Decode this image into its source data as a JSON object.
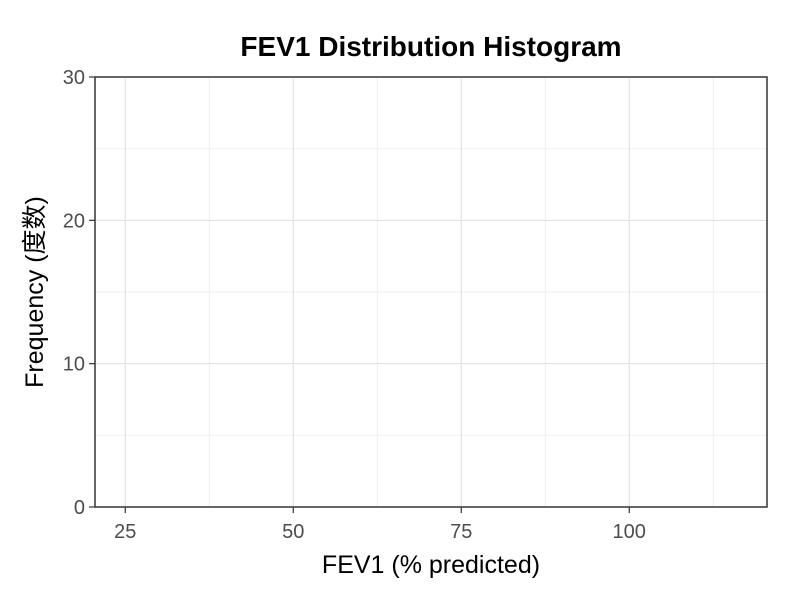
{
  "chart_data": {
    "type": "bar",
    "title": "FEV1 Distribution Histogram",
    "xlabel": "FEV1 (% predicted)",
    "ylabel": "Frequency (度数)",
    "xlim": [
      20.5,
      120.5
    ],
    "ylim": [
      0,
      30
    ],
    "x_ticks": [
      25,
      50,
      75,
      100
    ],
    "x_minor_ticks": [
      37.5,
      62.5,
      87.5,
      112.5
    ],
    "y_ticks": [
      0,
      10,
      20,
      30
    ],
    "y_minor_ticks": [
      5,
      15,
      25
    ],
    "grid": true,
    "legend": "none",
    "bins": [],
    "colors": {
      "panel_border": "#333333",
      "grid_major": "#dedede",
      "grid_minor": "#efefef",
      "tick_text": "#4d4d4d",
      "tick_mark": "#333333"
    }
  }
}
